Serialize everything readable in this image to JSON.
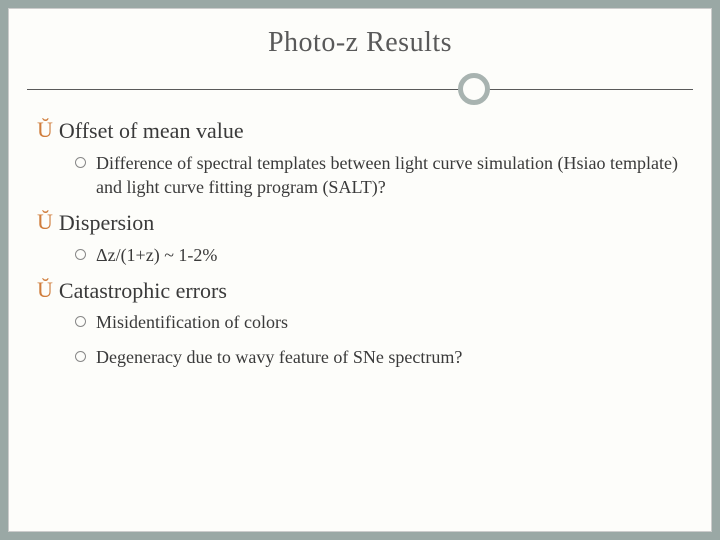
{
  "slide": {
    "title": "Photo-z Results",
    "bullet_color": "#d07d3c",
    "text_color": "#3a3a3a",
    "title_color": "#595959",
    "background": "#fdfdfa",
    "outer_bg": "#9aa8a5",
    "circle_border": "#a8b3b0",
    "sections": [
      {
        "heading": "Offset of mean value",
        "items": [
          "Difference of spectral templates between light curve simulation (Hsiao template) and light curve fitting program (SALT)?"
        ]
      },
      {
        "heading": "Dispersion",
        "items": [
          "Δz/(1+z) ~ 1-2%"
        ]
      },
      {
        "heading": "Catastrophic errors",
        "items": [
          "Misidentification of colors",
          "Degeneracy due to wavy feature of SNe spectrum?"
        ]
      }
    ]
  }
}
